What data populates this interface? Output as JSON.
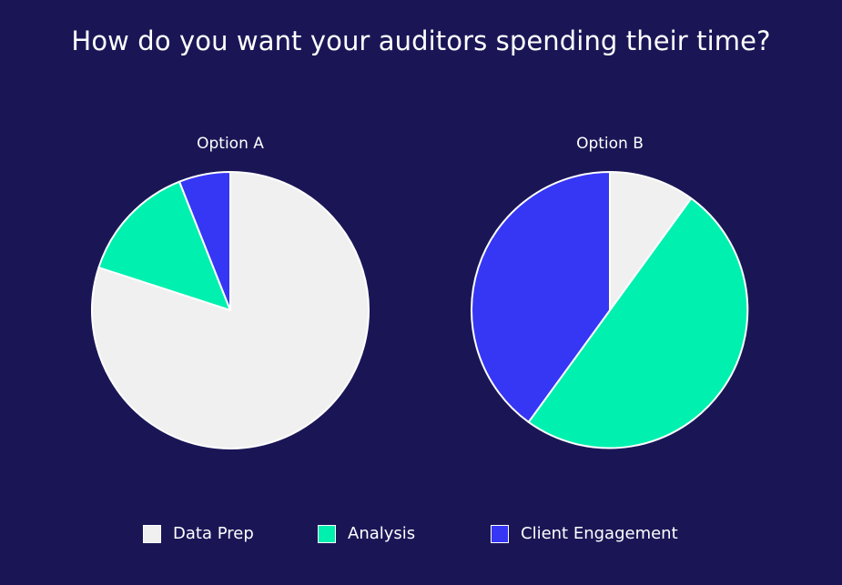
{
  "title": "How do you want your auditors spending their time?",
  "colors": {
    "background": "#1a1656",
    "data_prep": "#f0f0f0",
    "analysis": "#00f0b0",
    "client_engagement": "#3636f5",
    "slice_border": "#ffffff"
  },
  "legend": [
    {
      "label": "Data Prep",
      "color": "#f0f0f0"
    },
    {
      "label": "Analysis",
      "color": "#00f0b0"
    },
    {
      "label": "Client Engagement",
      "color": "#3636f5"
    }
  ],
  "chart_data": [
    {
      "type": "pie",
      "title": "Option A",
      "labels": [
        "Data Prep",
        "Analysis",
        "Client Engagement"
      ],
      "values": [
        80,
        14,
        6
      ],
      "colors": [
        "#f0f0f0",
        "#00f0b0",
        "#3636f5"
      ],
      "start": "12 o'clock",
      "direction": "clockwise",
      "legend_position": "bottom"
    },
    {
      "type": "pie",
      "title": "Option B",
      "labels": [
        "Data Prep",
        "Analysis",
        "Client Engagement"
      ],
      "values": [
        10,
        50,
        40
      ],
      "colors": [
        "#f0f0f0",
        "#00f0b0",
        "#3636f5"
      ],
      "start": "12 o'clock",
      "direction": "clockwise",
      "legend_position": "bottom"
    }
  ]
}
